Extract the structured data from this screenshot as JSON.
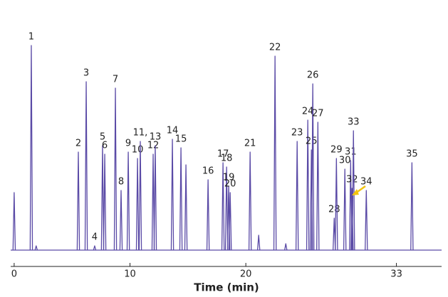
{
  "chart_data": {
    "type": "chromatogram",
    "xlabel": "Time (min)",
    "xlim": [
      -0.3,
      36.9
    ],
    "xticks": [
      0,
      10,
      20,
      33
    ],
    "ylim": [
      0,
      100
    ],
    "color": "#5a4aa6",
    "x": [
      0.0,
      1.48,
      1.9,
      5.54,
      6.22,
      6.95,
      7.63,
      7.82,
      8.74,
      9.23,
      9.85,
      10.65,
      10.89,
      12.0,
      12.18,
      13.66,
      14.4,
      14.83,
      16.74,
      18.03,
      18.34,
      18.52,
      18.65,
      20.37,
      21.11,
      22.52,
      23.45,
      24.43,
      25.35,
      25.66,
      25.78,
      26.22,
      27.63,
      27.82,
      28.55,
      29.05,
      29.17,
      29.29,
      30.4,
      34.34
    ],
    "values": [
      27,
      96,
      2,
      46,
      79,
      2,
      49,
      45,
      76,
      28,
      46,
      43,
      51,
      45,
      49,
      52,
      48,
      40,
      33,
      41,
      39,
      30,
      27,
      46,
      7,
      91,
      3,
      51,
      61,
      47,
      78,
      60,
      15,
      43,
      38,
      42,
      29,
      56,
      28,
      41
    ],
    "labels": [
      null,
      "1",
      null,
      "2",
      "3",
      "4",
      "5",
      "6",
      "7",
      "8",
      "9",
      "10",
      "11,",
      "12",
      "13",
      "14",
      "15",
      null,
      "16",
      "17",
      "18",
      "19",
      "20",
      "21",
      null,
      "22",
      null,
      "23",
      "24",
      "25",
      "26",
      "27",
      "28",
      "29",
      "30",
      "31",
      "32",
      "33",
      "34",
      "35"
    ]
  }
}
